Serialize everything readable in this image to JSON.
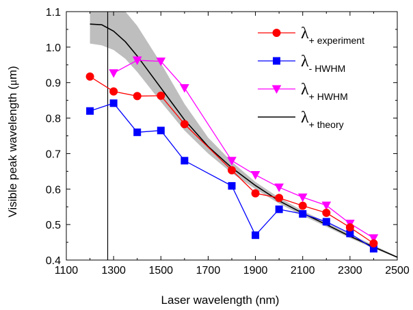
{
  "chart_data": {
    "type": "line",
    "xlabel": "Laser wavelength (nm)",
    "ylabel_prefix": "Visible peak wavelength (",
    "ylabel_mu": "μ",
    "ylabel_suffix": "m)",
    "xlim": [
      1100,
      2500
    ],
    "ylim": [
      0.4,
      1.1
    ],
    "x_ticks": [
      1100,
      1300,
      1500,
      1700,
      1900,
      2100,
      2300,
      2500
    ],
    "x_tick_labels": [
      "1100",
      "1300",
      "1500",
      "1700",
      "1900",
      "2100",
      "2300",
      "2500"
    ],
    "y_ticks": [
      0.4,
      0.5,
      0.6,
      0.7,
      0.8,
      0.9,
      1.0,
      1.1
    ],
    "y_tick_labels": [
      "0.4",
      "0.5",
      "0.6",
      "0.7",
      "0.8",
      "0.9",
      "1.0",
      "1.1"
    ],
    "vertical_line_x": 1275,
    "series": [
      {
        "key": "experiment",
        "label_main": "λ",
        "label_sub": "+ experiment",
        "color": "#ff0000",
        "marker": "circle",
        "x": [
          1200,
          1300,
          1400,
          1500,
          1600,
          1800,
          1900,
          2000,
          2100,
          2200,
          2300,
          2400
        ],
        "y": [
          0.917,
          0.875,
          0.862,
          0.863,
          0.783,
          0.653,
          0.588,
          0.575,
          0.553,
          0.533,
          0.492,
          0.447
        ]
      },
      {
        "key": "minus-hwhm",
        "label_main": "λ",
        "label_sub": "- HWHM",
        "color": "#0000ff",
        "marker": "square",
        "x": [
          1200,
          1300,
          1400,
          1500,
          1600,
          1800,
          1900,
          2000,
          2100,
          2200,
          2300,
          2400
        ],
        "y": [
          0.82,
          0.842,
          0.76,
          0.765,
          0.68,
          0.609,
          0.47,
          0.543,
          0.53,
          0.508,
          0.475,
          0.432
        ]
      },
      {
        "key": "plus-hwhm",
        "label_main": "λ",
        "label_sub": "+ HWHM",
        "color": "#ff00ff",
        "marker": "triangle-down",
        "x": [
          1300,
          1400,
          1500,
          1600,
          1800,
          1900,
          2000,
          2100,
          2200,
          2300,
          2400
        ],
        "y": [
          0.927,
          0.963,
          0.96,
          0.885,
          0.68,
          0.64,
          0.605,
          0.577,
          0.554,
          0.503,
          0.462
        ]
      },
      {
        "key": "theory",
        "label_main": "λ",
        "label_sub": "+ theory",
        "color": "#000000",
        "marker": "none",
        "x": [
          1200,
          1250,
          1300,
          1350,
          1400,
          1500,
          1600,
          1700,
          1800,
          1900,
          2000,
          2100,
          2200,
          2300,
          2400,
          2500
        ],
        "y": [
          1.065,
          1.063,
          1.045,
          1.015,
          0.975,
          0.885,
          0.795,
          0.72,
          0.66,
          0.61,
          0.567,
          0.532,
          0.5,
          0.467,
          0.437,
          0.408
        ]
      }
    ],
    "theory_band": {
      "color": "#bebebe",
      "x": [
        1200,
        1250,
        1300,
        1350,
        1400,
        1500,
        1600,
        1700,
        1800,
        1900,
        2000,
        2100,
        2200,
        2300,
        2400,
        2500
      ],
      "upper": [
        1.1,
        1.1,
        1.1,
        1.1,
        1.06,
        0.955,
        0.84,
        0.745,
        0.677,
        0.62,
        0.576,
        0.539,
        0.506,
        0.473,
        0.442,
        0.41
      ],
      "lower": [
        1.01,
        1.005,
        0.992,
        0.967,
        0.93,
        0.846,
        0.765,
        0.7,
        0.645,
        0.6,
        0.559,
        0.525,
        0.494,
        0.462,
        0.433,
        0.406
      ]
    }
  }
}
